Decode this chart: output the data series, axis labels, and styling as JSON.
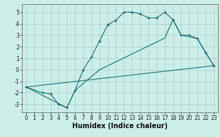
{
  "title": "",
  "xlabel": "Humidex (Indice chaleur)",
  "bg_color": "#cceee8",
  "grid_color": "#aacccc",
  "line_color": "#1a7070",
  "xlim": [
    -0.5,
    23.5
  ],
  "ylim": [
    -3.7,
    5.7
  ],
  "xticks": [
    0,
    1,
    2,
    3,
    4,
    5,
    6,
    7,
    8,
    9,
    10,
    11,
    12,
    13,
    14,
    15,
    16,
    17,
    18,
    19,
    20,
    21,
    22,
    23
  ],
  "yticks": [
    -3,
    -2,
    -1,
    0,
    1,
    2,
    3,
    4,
    5
  ],
  "line1_x": [
    0,
    2,
    3,
    4,
    5,
    6,
    7,
    8,
    9,
    10,
    11,
    12,
    13,
    14,
    15,
    16,
    17,
    18,
    19,
    20,
    21,
    22,
    23
  ],
  "line1_y": [
    -1.5,
    -2.0,
    -2.1,
    -3.0,
    -3.3,
    -1.8,
    0.0,
    1.1,
    2.5,
    3.9,
    4.3,
    5.0,
    5.0,
    4.85,
    4.5,
    4.5,
    5.0,
    4.35,
    3.0,
    3.0,
    2.7,
    1.5,
    0.35
  ],
  "line2_x": [
    0,
    5,
    6,
    9,
    17,
    18,
    19,
    21,
    22,
    23
  ],
  "line2_y": [
    -1.5,
    -3.3,
    -1.8,
    0.0,
    2.75,
    4.35,
    3.0,
    2.7,
    1.5,
    0.35
  ],
  "line3_x": [
    0,
    23
  ],
  "line3_y": [
    -1.5,
    0.35
  ],
  "xlabel_fontsize": 7,
  "tick_fontsize": 5.5
}
